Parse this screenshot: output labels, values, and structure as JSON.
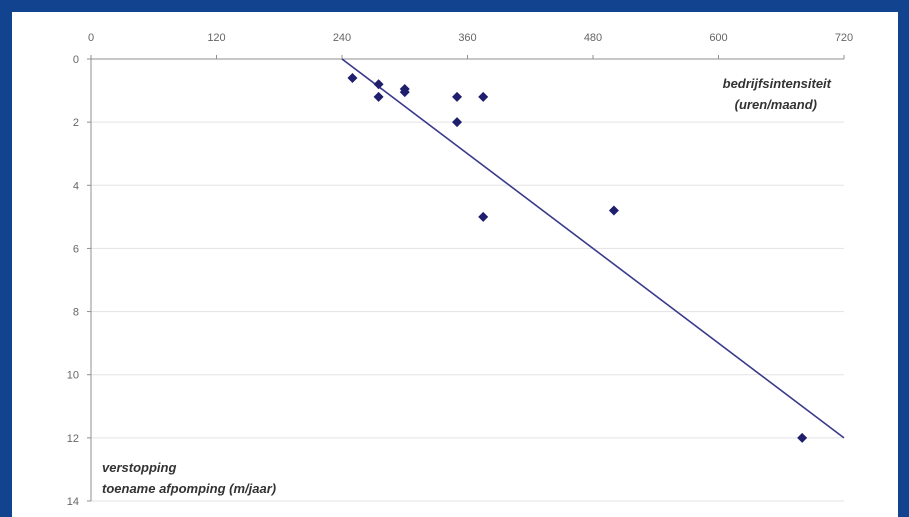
{
  "colors": {
    "frame": "#12438f",
    "marker": "#1f1f6e",
    "trendline": "#3a3a8c",
    "grid": "#e3e3e3"
  },
  "chart_data": {
    "type": "scatter",
    "xlim": [
      0,
      720
    ],
    "ylim": [
      0,
      14
    ],
    "x_axis_position": "top",
    "y_axis_inverted": true,
    "grid": "horizontal",
    "x_ticks": [
      "0",
      "120",
      "240",
      "360",
      "480",
      "600",
      "720"
    ],
    "y_ticks": [
      "0",
      "2",
      "4",
      "6",
      "8",
      "10",
      "12",
      "14"
    ],
    "annotations": {
      "top_right_line1": "bedrijfsintensiteit",
      "top_right_line2": "(uren/maand)",
      "bottom_left_line1": "verstopping",
      "bottom_left_line2": "toename afpomping (m/jaar)"
    },
    "points": [
      {
        "x": 250,
        "y": 0.6
      },
      {
        "x": 275,
        "y": 0.8
      },
      {
        "x": 275,
        "y": 1.2
      },
      {
        "x": 300,
        "y": 0.95
      },
      {
        "x": 300,
        "y": 1.05
      },
      {
        "x": 350,
        "y": 1.2
      },
      {
        "x": 375,
        "y": 1.2
      },
      {
        "x": 350,
        "y": 2.0
      },
      {
        "x": 375,
        "y": 5.0
      },
      {
        "x": 500,
        "y": 4.8
      },
      {
        "x": 680,
        "y": 12.0
      }
    ],
    "trendline": {
      "x": [
        240,
        720
      ],
      "y": [
        0,
        12.0
      ]
    }
  }
}
